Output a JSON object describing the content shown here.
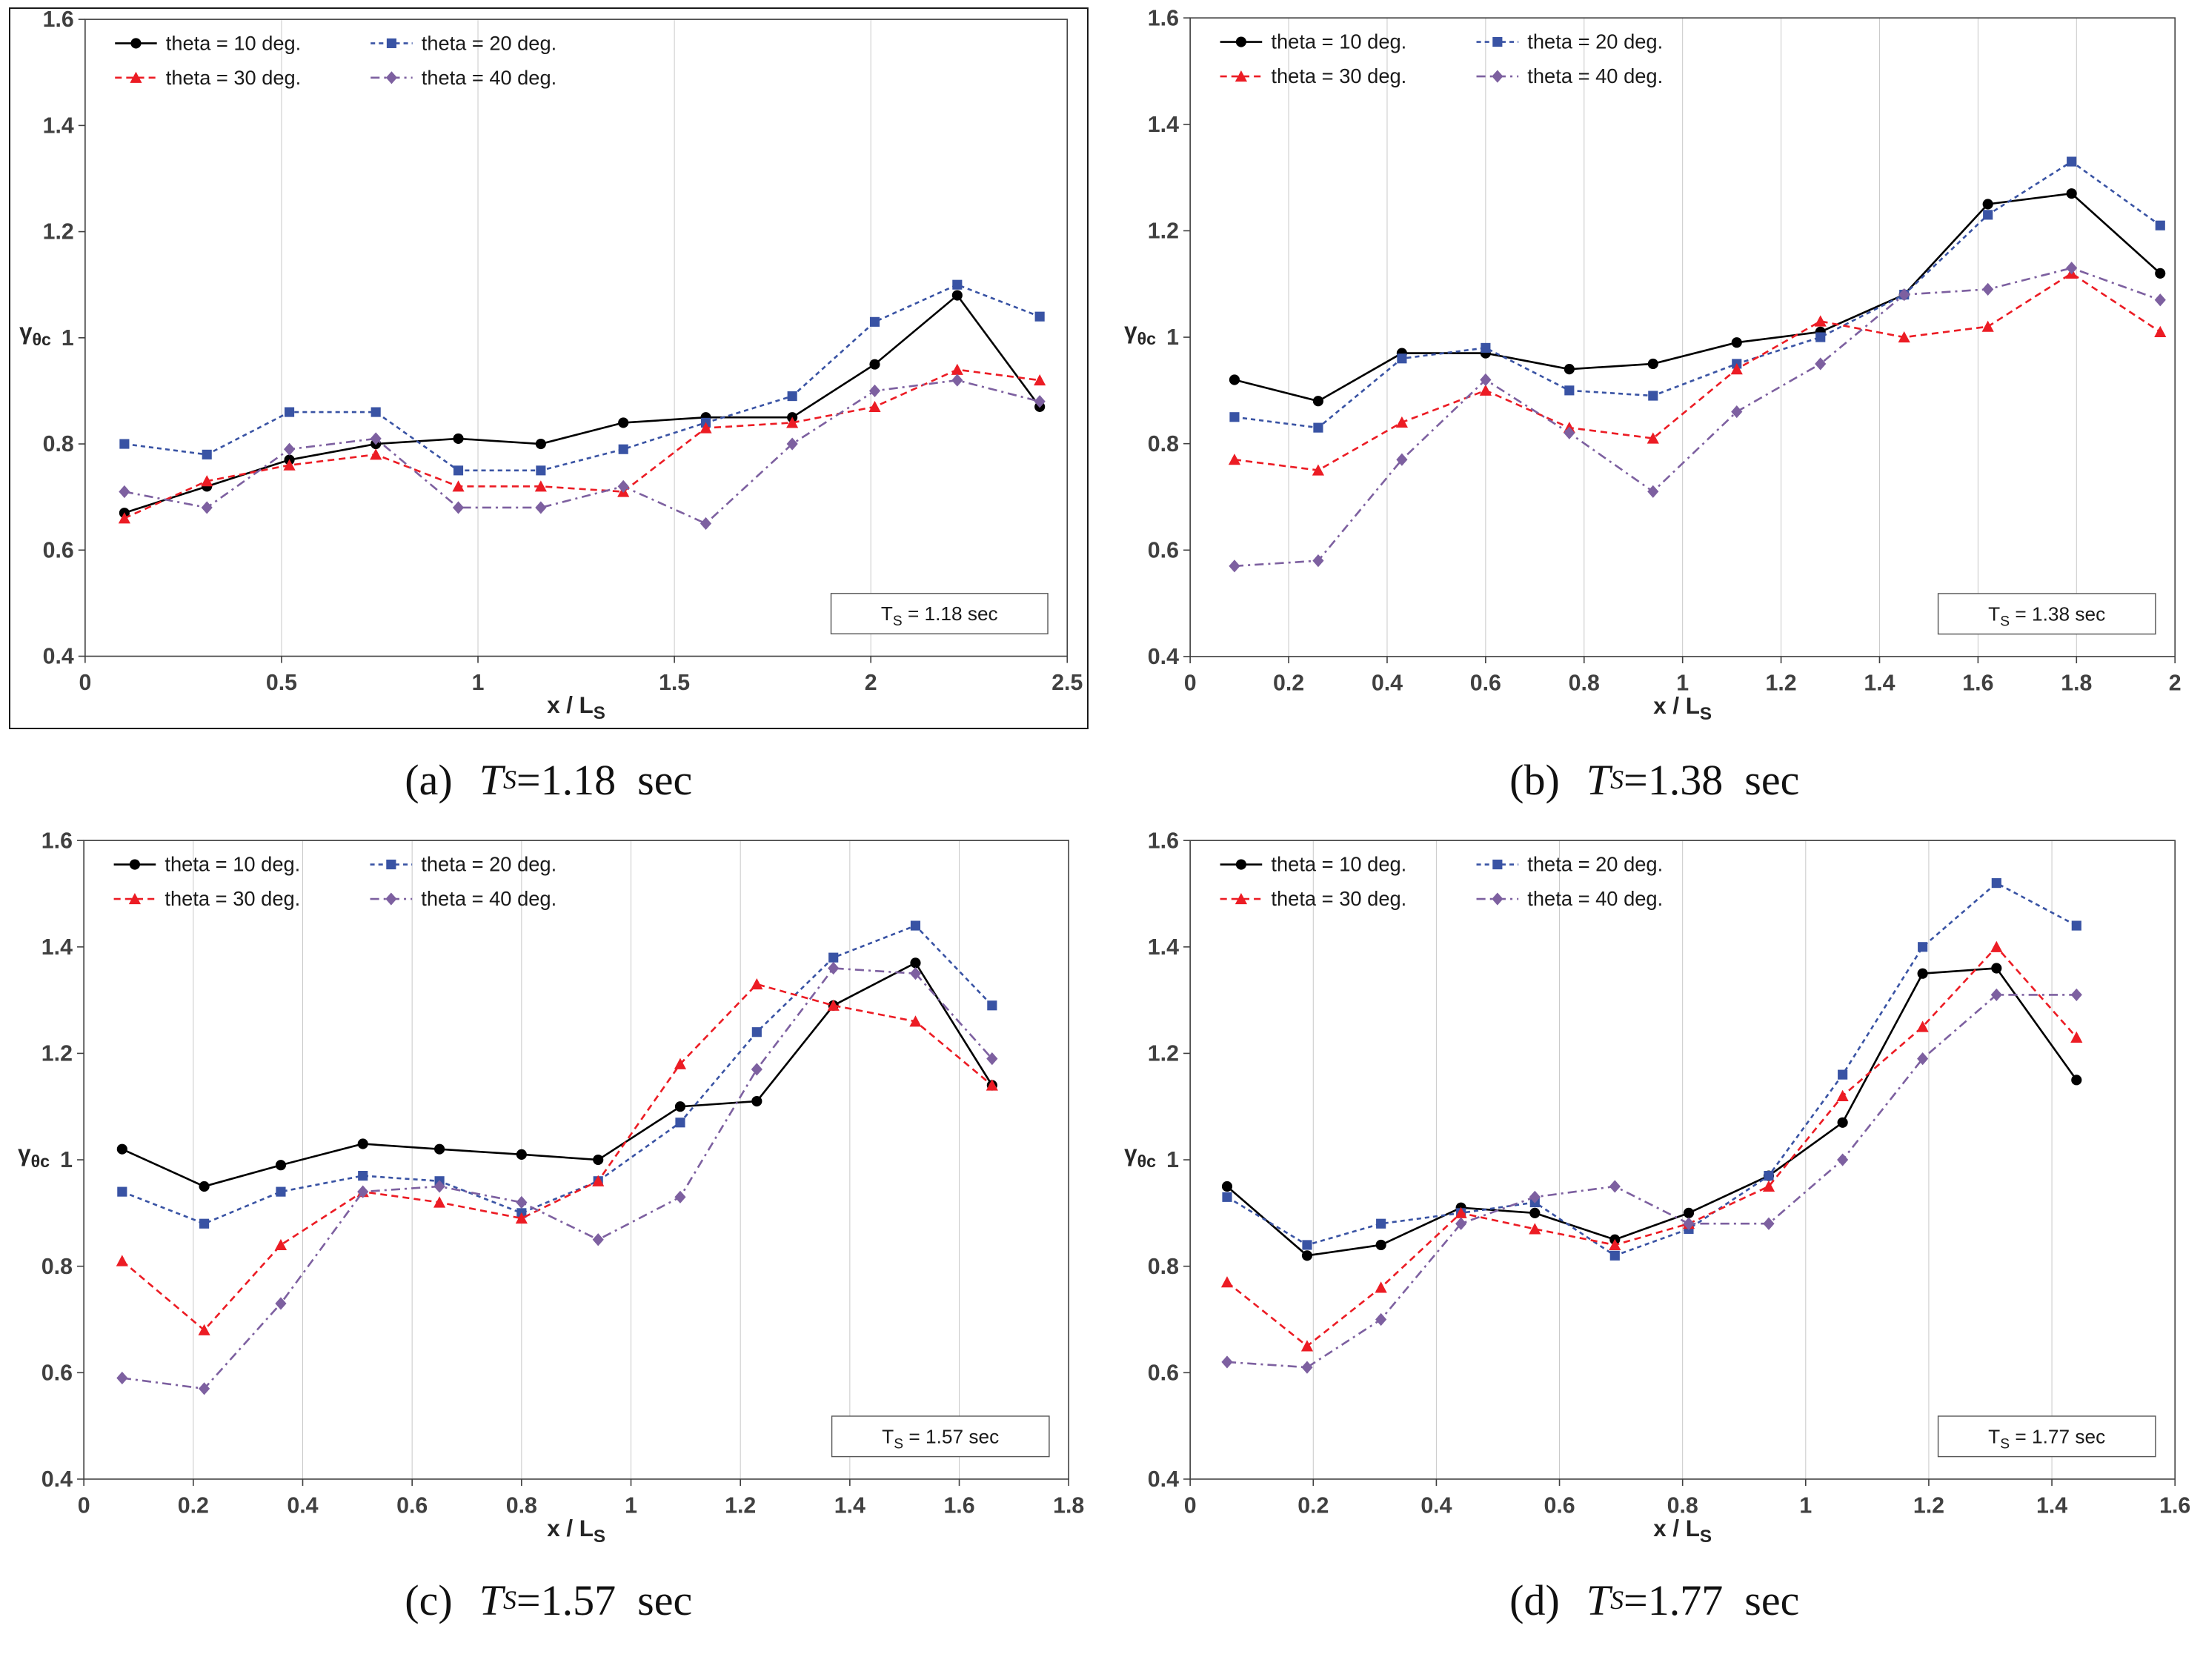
{
  "figure": {
    "legend_labels": [
      "theta = 10 deg.",
      "theta = 20 deg.",
      "theta = 30 deg.",
      "theta = 40 deg."
    ],
    "series_styles": [
      {
        "name": "theta-10-deg",
        "color": "#000000",
        "dash": "",
        "marker": "circle"
      },
      {
        "name": "theta-20-deg",
        "color": "#3953a4",
        "dash": "6 5",
        "marker": "square"
      },
      {
        "name": "theta-30-deg",
        "color": "#ec1c24",
        "dash": "9 6",
        "marker": "triangle"
      },
      {
        "name": "theta-40-deg",
        "color": "#7d60a0",
        "dash": "12 6 3 6",
        "marker": "diamond"
      }
    ],
    "xlabel": {
      "main": "x / L",
      "sub": "S"
    },
    "ylabel": {
      "main": "γ",
      "sub": "θc"
    }
  },
  "captions": [
    {
      "prefix": "(a)",
      "t": "T",
      "sub": "S",
      "rest": "=1.18  sec"
    },
    {
      "prefix": "(b)",
      "t": "T",
      "sub": "S",
      "rest": "=1.38  sec"
    },
    {
      "prefix": "(c)",
      "t": "T",
      "sub": "S",
      "rest": "=1.57  sec"
    },
    {
      "prefix": "(d)",
      "t": "T",
      "sub": "S",
      "rest": "=1.77  sec"
    }
  ],
  "chart_data": [
    {
      "type": "line",
      "title": "(a) Ts=1.18 sec",
      "ts_box": {
        "t": "T",
        "sub": "S",
        "rest": " = 1.18 sec"
      },
      "xlim": [
        0,
        2.5
      ],
      "ylim": [
        0.4,
        1.6
      ],
      "xticks": [
        0,
        0.5,
        1,
        1.5,
        2,
        2.5
      ],
      "xtick_labels": [
        "0",
        "0.5",
        "1",
        "1.5",
        "2",
        "2.5"
      ],
      "yticks": [
        0.4,
        0.6,
        0.8,
        1,
        1.2,
        1.4,
        1.6
      ],
      "ytick_labels": [
        "0.4",
        "0.6",
        "0.8",
        "1",
        "1.2",
        "1.4",
        "1.6"
      ],
      "x": [
        0.1,
        0.31,
        0.52,
        0.74,
        0.95,
        1.16,
        1.37,
        1.58,
        1.8,
        2.01,
        2.22,
        2.43
      ],
      "series": [
        {
          "name": "theta = 10 deg.",
          "values": [
            0.67,
            0.72,
            0.77,
            0.8,
            0.81,
            0.8,
            0.84,
            0.85,
            0.85,
            0.95,
            1.08,
            0.87
          ]
        },
        {
          "name": "theta = 20 deg.",
          "values": [
            0.8,
            0.78,
            0.86,
            0.86,
            0.75,
            0.75,
            0.79,
            0.84,
            0.89,
            1.03,
            1.1,
            1.04
          ]
        },
        {
          "name": "theta = 30 deg.",
          "values": [
            0.66,
            0.73,
            0.76,
            0.78,
            0.72,
            0.72,
            0.71,
            0.83,
            0.84,
            0.87,
            0.94,
            0.92
          ]
        },
        {
          "name": "theta = 40 deg.",
          "values": [
            0.71,
            0.68,
            0.79,
            0.81,
            0.68,
            0.68,
            0.72,
            0.65,
            0.8,
            0.9,
            0.92,
            0.88
          ]
        }
      ]
    },
    {
      "type": "line",
      "title": "(b) Ts=1.38 sec",
      "ts_box": {
        "t": "T",
        "sub": "S",
        "rest": " = 1.38 sec"
      },
      "xlim": [
        0,
        2
      ],
      "ylim": [
        0.4,
        1.6
      ],
      "xticks": [
        0,
        0.2,
        0.4,
        0.6,
        0.8,
        1,
        1.2,
        1.4,
        1.6,
        1.8,
        2
      ],
      "xtick_labels": [
        "0",
        "0.2",
        "0.4",
        "0.6",
        "0.8",
        "1",
        "1.2",
        "1.4",
        "1.6",
        "1.8",
        "2"
      ],
      "yticks": [
        0.4,
        0.6,
        0.8,
        1,
        1.2,
        1.4,
        1.6
      ],
      "ytick_labels": [
        "0.4",
        "0.6",
        "0.8",
        "1",
        "1.2",
        "1.4",
        "1.6"
      ],
      "x": [
        0.09,
        0.26,
        0.43,
        0.6,
        0.77,
        0.94,
        1.11,
        1.28,
        1.45,
        1.62,
        1.79,
        1.97
      ],
      "series": [
        {
          "name": "theta = 10 deg.",
          "values": [
            0.92,
            0.88,
            0.97,
            0.97,
            0.94,
            0.95,
            0.99,
            1.01,
            1.08,
            1.25,
            1.27,
            1.12
          ]
        },
        {
          "name": "theta = 20 deg.",
          "values": [
            0.85,
            0.83,
            0.96,
            0.98,
            0.9,
            0.89,
            0.95,
            1.0,
            1.08,
            1.23,
            1.33,
            1.21
          ]
        },
        {
          "name": "theta = 30 deg.",
          "values": [
            0.77,
            0.75,
            0.84,
            0.9,
            0.83,
            0.81,
            0.94,
            1.03,
            1.0,
            1.02,
            1.12,
            1.01
          ]
        },
        {
          "name": "theta = 40 deg.",
          "values": [
            0.57,
            0.58,
            0.77,
            0.92,
            0.82,
            0.71,
            0.86,
            0.95,
            1.08,
            1.09,
            1.13,
            1.07
          ]
        }
      ]
    },
    {
      "type": "line",
      "title": "(c) Ts=1.57 sec",
      "ts_box": {
        "t": "T",
        "sub": "S",
        "rest": " = 1.57 sec"
      },
      "xlim": [
        0,
        1.8
      ],
      "ylim": [
        0.4,
        1.6
      ],
      "xticks": [
        0,
        0.2,
        0.4,
        0.6,
        0.8,
        1,
        1.2,
        1.4,
        1.6,
        1.8
      ],
      "xtick_labels": [
        "0",
        "0.2",
        "0.4",
        "0.6",
        "0.8",
        "1",
        "1.2",
        "1.4",
        "1.6",
        "1.8"
      ],
      "yticks": [
        0.4,
        0.6,
        0.8,
        1,
        1.2,
        1.4,
        1.6
      ],
      "ytick_labels": [
        "0.4",
        "0.6",
        "0.8",
        "1",
        "1.2",
        "1.4",
        "1.6"
      ],
      "x": [
        0.07,
        0.22,
        0.36,
        0.51,
        0.65,
        0.8,
        0.94,
        1.09,
        1.23,
        1.37,
        1.52,
        1.66
      ],
      "series": [
        {
          "name": "theta = 10 deg.",
          "values": [
            1.02,
            0.95,
            0.99,
            1.03,
            1.02,
            1.01,
            1.0,
            1.1,
            1.11,
            1.29,
            1.37,
            1.14
          ]
        },
        {
          "name": "theta = 20 deg.",
          "values": [
            0.94,
            0.88,
            0.94,
            0.97,
            0.96,
            0.9,
            0.96,
            1.07,
            1.24,
            1.38,
            1.44,
            1.29
          ]
        },
        {
          "name": "theta = 30 deg.",
          "values": [
            0.81,
            0.68,
            0.84,
            0.94,
            0.92,
            0.89,
            0.96,
            1.18,
            1.33,
            1.29,
            1.26,
            1.14
          ]
        },
        {
          "name": "theta = 40 deg.",
          "values": [
            0.59,
            0.57,
            0.73,
            0.94,
            0.95,
            0.92,
            0.85,
            0.93,
            1.17,
            1.36,
            1.35,
            1.19
          ]
        }
      ]
    },
    {
      "type": "line",
      "title": "(d) Ts=1.77 sec",
      "ts_box": {
        "t": "T",
        "sub": "S",
        "rest": " = 1.77 sec"
      },
      "xlim": [
        0,
        1.6
      ],
      "ylim": [
        0.4,
        1.6
      ],
      "xticks": [
        0,
        0.2,
        0.4,
        0.6,
        0.8,
        1,
        1.2,
        1.4,
        1.6
      ],
      "xtick_labels": [
        "0",
        "0.2",
        "0.4",
        "0.6",
        "0.8",
        "1",
        "1.2",
        "1.4",
        "1.6"
      ],
      "yticks": [
        0.4,
        0.6,
        0.8,
        1,
        1.2,
        1.4,
        1.6
      ],
      "ytick_labels": [
        "0.4",
        "0.6",
        "0.8",
        "1",
        "1.2",
        "1.4",
        "1.6"
      ],
      "x": [
        0.06,
        0.19,
        0.31,
        0.44,
        0.56,
        0.69,
        0.81,
        0.94,
        1.06,
        1.19,
        1.31,
        1.44
      ],
      "series": [
        {
          "name": "theta = 10 deg.",
          "values": [
            0.95,
            0.82,
            0.84,
            0.91,
            0.9,
            0.85,
            0.9,
            0.97,
            1.07,
            1.35,
            1.36,
            1.15
          ]
        },
        {
          "name": "theta = 20 deg.",
          "values": [
            0.93,
            0.84,
            0.88,
            0.9,
            0.92,
            0.82,
            0.87,
            0.97,
            1.16,
            1.4,
            1.52,
            1.44
          ]
        },
        {
          "name": "theta = 30 deg.",
          "values": [
            0.77,
            0.65,
            0.76,
            0.9,
            0.87,
            0.84,
            0.88,
            0.95,
            1.12,
            1.25,
            1.4,
            1.23
          ]
        },
        {
          "name": "theta = 40 deg.",
          "values": [
            0.62,
            0.61,
            0.7,
            0.88,
            0.93,
            0.95,
            0.88,
            0.88,
            1.0,
            1.19,
            1.31,
            1.31
          ]
        }
      ]
    }
  ]
}
